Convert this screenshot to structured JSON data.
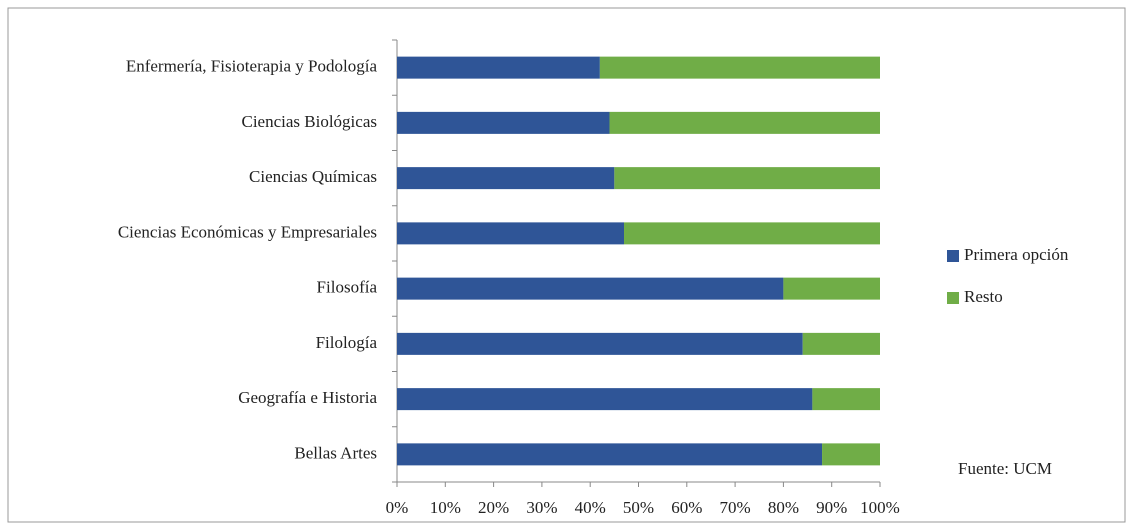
{
  "chart_data": {
    "type": "stacked_barh",
    "categories": [
      "Enfermería, Fisioterapia y Podología",
      "Ciencias Biológicas",
      "Ciencias Químicas",
      "Ciencias Económicas y Empresariales",
      "Filosofía",
      "Filología",
      "Geografía e Historia",
      "Bellas Artes"
    ],
    "series": [
      {
        "name": "Primera opción",
        "color": "#2f5597",
        "values": [
          42,
          44,
          45,
          47,
          80,
          84,
          86,
          88
        ]
      },
      {
        "name": "Resto",
        "color": "#70ad47",
        "values": [
          58,
          56,
          55,
          53,
          20,
          16,
          14,
          12
        ]
      }
    ],
    "xlim": [
      0,
      100
    ],
    "xticks": [
      {
        "value": 0,
        "label": "0%"
      },
      {
        "value": 10,
        "label": "10%"
      },
      {
        "value": 20,
        "label": "20%"
      },
      {
        "value": 30,
        "label": "30%"
      },
      {
        "value": 40,
        "label": "40%"
      },
      {
        "value": 50,
        "label": "50%"
      },
      {
        "value": 60,
        "label": "60%"
      },
      {
        "value": 70,
        "label": "70%"
      },
      {
        "value": 80,
        "label": "80%"
      },
      {
        "value": 90,
        "label": "90%"
      },
      {
        "value": 100,
        "label": "100%"
      }
    ],
    "legend": "right",
    "annotation": "Fuente: UCM"
  }
}
